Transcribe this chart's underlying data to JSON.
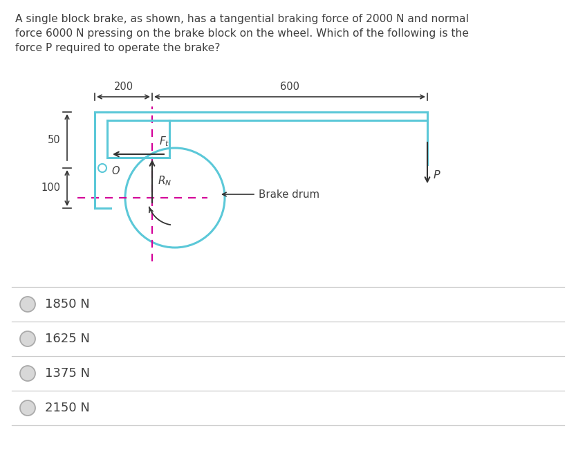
{
  "question_text": "A single block brake, as shown, has a tangential braking force of 2000 N and normal\nforce 6000 N pressing on the brake block on the wheel. Which of the following is the\nforce P required to operate the brake?",
  "dim_200": "200",
  "dim_600": "600",
  "dim_50": "50",
  "dim_100": "100",
  "label_Ft": "$F_t$",
  "label_RN": "$R_N$",
  "label_P": "P",
  "label_brake_drum": "Brake drum",
  "label_O": "O",
  "choices": [
    "1850 N",
    "1625 N",
    "1375 N",
    "2150 N"
  ],
  "cyan_color": "#5BC8D8",
  "magenta_color": "#D4009A",
  "arrow_color": "#333333",
  "bg_color": "#FFFFFF",
  "text_color": "#404040",
  "separator_color": "#cccccc",
  "radio_face": "#d8d8d8",
  "radio_edge": "#aaaaaa"
}
